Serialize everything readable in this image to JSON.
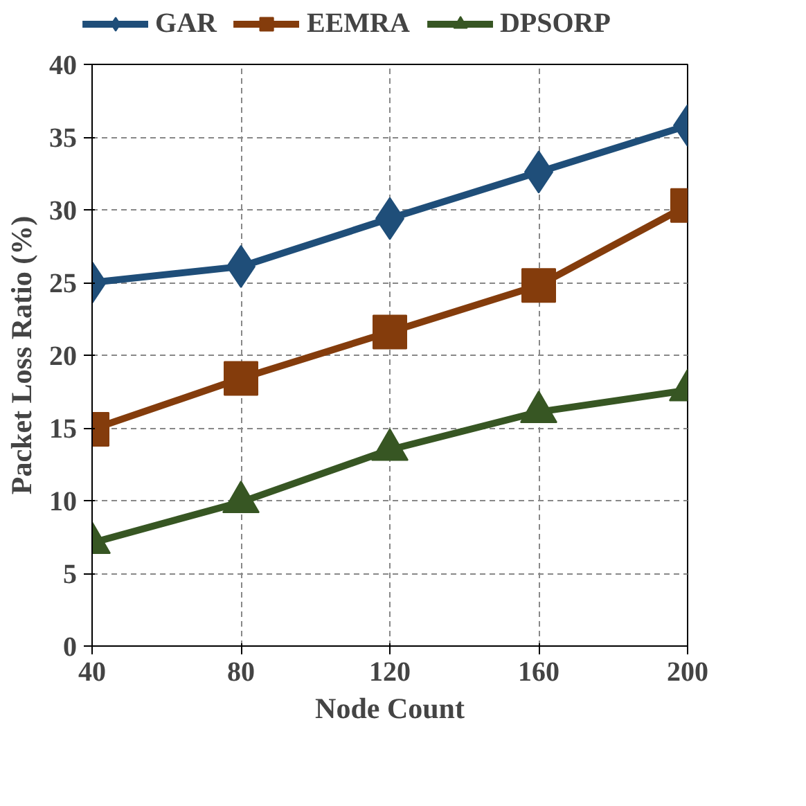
{
  "chart_data": {
    "type": "line",
    "xlabel": "Node Count",
    "ylabel": "Packet Loss Ratio (%)",
    "x": [
      40,
      80,
      120,
      160,
      200
    ],
    "xlim": [
      40,
      200
    ],
    "xticks": [
      40,
      80,
      120,
      160,
      200
    ],
    "ylim": [
      0,
      40
    ],
    "yticks": [
      0,
      5,
      10,
      15,
      20,
      25,
      30,
      35,
      40
    ],
    "grid": true,
    "legend": "top",
    "line_style": "solid",
    "series": [
      {
        "name": "GAR",
        "color": "#1f4e79",
        "marker": "diamond",
        "values": [
          25.0,
          26.1,
          29.4,
          32.6,
          35.8
        ]
      },
      {
        "name": "EEMRA",
        "color": "#843c0c",
        "marker": "square",
        "values": [
          14.9,
          18.4,
          21.6,
          24.8,
          30.3
        ]
      },
      {
        "name": "DPSORP",
        "color": "#375623",
        "marker": "triangle",
        "values": [
          7.1,
          9.9,
          13.5,
          16.1,
          17.6
        ]
      }
    ]
  }
}
